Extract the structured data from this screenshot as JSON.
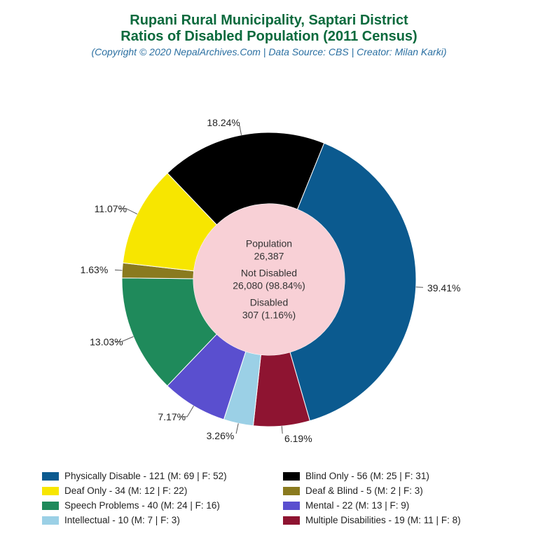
{
  "title": {
    "line1": "Rupani Rural Municipality, Saptari District",
    "line2": "Ratios of Disabled Population (2011 Census)",
    "color": "#0b6a3d",
    "fontsize": 20
  },
  "subtitle": {
    "text": "(Copyright © 2020 NepalArchives.Com | Data Source: CBS | Creator: Milan Karki)",
    "color": "#2a6fa1",
    "fontsize": 14
  },
  "donut": {
    "type": "pie",
    "outer_radius": 210,
    "inner_radius": 108,
    "center_bg": "#f8d0d6",
    "background": "#ffffff",
    "start_angle_deg": -68,
    "slices": [
      {
        "label": "Physically Disable",
        "pct": 39.41,
        "color": "#0b5a8f",
        "legend": "Physically Disable - 121 (M: 69 | F: 52)"
      },
      {
        "label": "Multiple Disabilities",
        "pct": 6.19,
        "color": "#8e1431",
        "legend": "Multiple Disabilities - 19 (M: 11 | F: 8)"
      },
      {
        "label": "Intellectual",
        "pct": 3.26,
        "color": "#9bd0e6",
        "legend": "Intellectual - 10 (M: 7 | F: 3)"
      },
      {
        "label": "Mental",
        "pct": 7.17,
        "color": "#5a4fcf",
        "legend": "Mental - 22 (M: 13 | F: 9)"
      },
      {
        "label": "Speech Problems",
        "pct": 13.03,
        "color": "#1f8a5b",
        "legend": "Speech Problems - 40 (M: 24 | F: 16)"
      },
      {
        "label": "Deaf & Blind",
        "pct": 1.63,
        "color": "#8a7a1f",
        "legend": "Deaf & Blind - 5 (M: 2 | F: 3)"
      },
      {
        "label": "Deaf Only",
        "pct": 11.07,
        "color": "#f7e600",
        "legend": "Deaf Only - 34 (M: 12 | F: 22)"
      },
      {
        "label": "Blind Only",
        "pct": 18.24,
        "color": "#000000",
        "legend": "Blind Only - 56 (M: 25 | F: 31)"
      }
    ],
    "slice_label_fontsize": 14,
    "slice_label_color": "#222222"
  },
  "center": {
    "population_label": "Population",
    "population_value": "26,387",
    "not_disabled_label": "Not Disabled",
    "not_disabled_value": "26,080 (98.84%)",
    "disabled_label": "Disabled",
    "disabled_value": "307 (1.16%)",
    "fontsize": 14,
    "color": "#333333"
  },
  "legend_order": [
    "Physically Disable",
    "Blind Only",
    "Deaf Only",
    "Deaf & Blind",
    "Speech Problems",
    "Mental",
    "Intellectual",
    "Multiple Disabilities"
  ],
  "legend_fontsize": 13.5
}
